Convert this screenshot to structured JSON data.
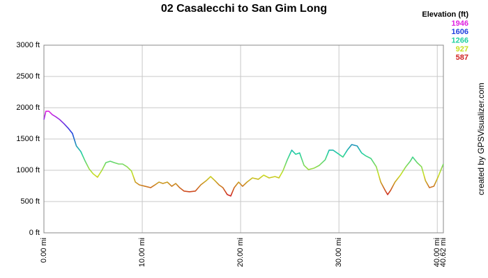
{
  "chart_data": {
    "type": "line",
    "title": "02 Casalecchi to San Gim Long",
    "credit": "created by GPSVisualizer.com",
    "legend": {
      "title": "Elevation (ft)",
      "stops": [
        {
          "value": 1946,
          "color": "#e020e0"
        },
        {
          "value": 1606,
          "color": "#2040e0"
        },
        {
          "value": 1266,
          "color": "#20d0a0"
        },
        {
          "value": 927,
          "color": "#c8e020"
        },
        {
          "value": 587,
          "color": "#d02020"
        }
      ]
    },
    "grid": true,
    "xlim": [
      0,
      40.62
    ],
    "ylim": [
      0,
      3000
    ],
    "xticks": [
      {
        "value": 0,
        "label": "0.00 mi"
      },
      {
        "value": 10,
        "label": "10.00 mi"
      },
      {
        "value": 20,
        "label": "20.00 mi"
      },
      {
        "value": 30,
        "label": "30.00 mi"
      },
      {
        "value": 40,
        "label": "40.00 mi"
      },
      {
        "value": 40.62,
        "label": "40.62 mi"
      }
    ],
    "yticks": [
      {
        "value": 0,
        "label": "0 ft"
      },
      {
        "value": 500,
        "label": "500 ft"
      },
      {
        "value": 1000,
        "label": "1000 ft"
      },
      {
        "value": 1500,
        "label": "1500 ft"
      },
      {
        "value": 2000,
        "label": "2000 ft"
      },
      {
        "value": 2500,
        "label": "2500 ft"
      },
      {
        "value": 3000,
        "label": "3000 ft"
      }
    ],
    "x": [
      0,
      0.2,
      0.5,
      0.85,
      1.2,
      1.6,
      2.05,
      2.5,
      2.9,
      3.3,
      3.75,
      4.2,
      4.6,
      5.0,
      5.45,
      5.9,
      6.3,
      6.75,
      7.15,
      7.6,
      8.0,
      8.45,
      8.9,
      9.3,
      9.7,
      10.3,
      10.85,
      11.3,
      11.7,
      12.1,
      12.55,
      13.0,
      13.4,
      13.8,
      14.25,
      14.8,
      15.4,
      15.95,
      16.5,
      16.95,
      17.4,
      17.8,
      18.2,
      18.65,
      19.0,
      19.35,
      19.8,
      20.2,
      20.65,
      21.2,
      21.8,
      22.35,
      22.9,
      23.5,
      23.9,
      24.3,
      24.75,
      25.2,
      25.6,
      26.0,
      26.45,
      26.9,
      27.45,
      28.0,
      28.6,
      29.0,
      29.4,
      30.0,
      30.4,
      30.85,
      31.3,
      31.85,
      32.3,
      32.7,
      33.25,
      33.8,
      34.25,
      34.7,
      34.95,
      35.25,
      35.7,
      36.25,
      36.8,
      37.25,
      37.5,
      37.95,
      38.4,
      38.8,
      39.2,
      39.65,
      40.1,
      40.5,
      40.62
    ],
    "values": [
      1811,
      1944,
      1944,
      1889,
      1856,
      1811,
      1744,
      1667,
      1589,
      1389,
      1300,
      1144,
      1022,
      944,
      889,
      1000,
      1122,
      1144,
      1122,
      1100,
      1100,
      1056,
      989,
      811,
      767,
      744,
      722,
      767,
      811,
      789,
      811,
      744,
      789,
      722,
      667,
      656,
      667,
      767,
      833,
      900,
      833,
      767,
      722,
      611,
      589,
      722,
      811,
      744,
      811,
      878,
      856,
      922,
      878,
      900,
      878,
      989,
      1167,
      1322,
      1256,
      1278,
      1078,
      1011,
      1033,
      1078,
      1167,
      1322,
      1322,
      1256,
      1211,
      1322,
      1411,
      1389,
      1278,
      1233,
      1189,
      1056,
      811,
      678,
      611,
      678,
      811,
      922,
      1056,
      1144,
      1211,
      1122,
      1056,
      833,
      722,
      744,
      900,
      1056,
      1100
    ]
  }
}
